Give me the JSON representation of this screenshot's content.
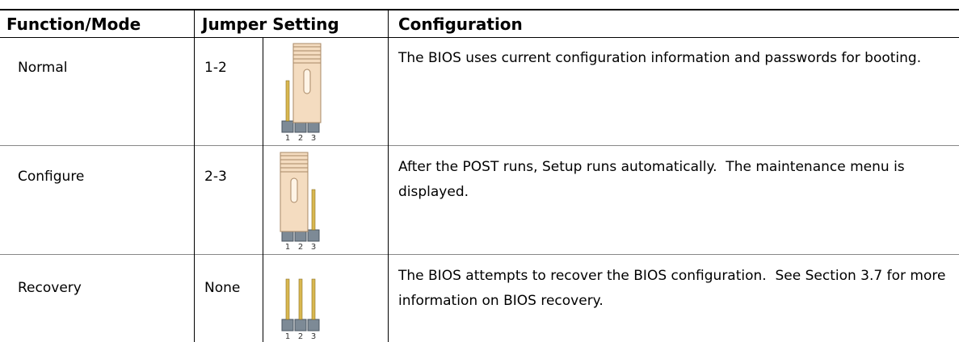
{
  "header": {
    "columns": [
      "Function/Mode",
      "Jumper Setting",
      "Configuration"
    ]
  },
  "pin_labels": [
    "1",
    "2",
    "3"
  ],
  "table": {
    "rows": [
      [
        "Normal",
        "1-2",
        "The BIOS uses current configuration information and passwords for booting."
      ],
      [
        "Configure",
        "2-3",
        "After the POST runs, Setup runs automatically.  The maintenance menu is displayed."
      ],
      [
        "Recovery",
        "None",
        "The BIOS attempts to recover the BIOS configuration.  See Section 3.7 for more information on BIOS recovery."
      ]
    ]
  }
}
